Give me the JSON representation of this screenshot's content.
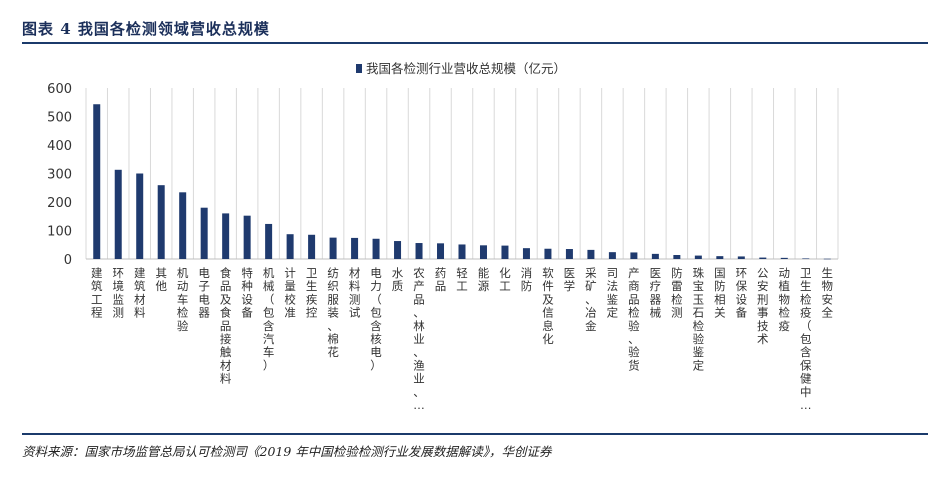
{
  "figure": {
    "title": "图表 4    我国各检测领域营收总规模",
    "source": "资料来源：国家市场监管总局认可检测司《2019 年中国检验检测行业发展数据解读》，华创证券"
  },
  "colors": {
    "bar": "#1f3a6e",
    "grid": "#d9d9d9",
    "rule": "#1b3a6b",
    "text": "#333333"
  },
  "chart_data": {
    "type": "bar",
    "title": "",
    "xlabel": "",
    "ylabel": "",
    "ylim": [
      0,
      600
    ],
    "yticks": [
      0,
      100,
      200,
      300,
      400,
      500,
      600
    ],
    "grid": "vertical-only",
    "legend": {
      "position": "top-center",
      "entries": [
        "我国各检测行业营收总规模（亿元）"
      ]
    },
    "categories": [
      "建筑工程",
      "环境监测",
      "建筑材料",
      "其他",
      "机动车检验",
      "电子电器",
      "食品及食品接触材料",
      "特种设备",
      "机械（包含汽车）",
      "计量校准",
      "卫生疾控",
      "纺织服装、棉花",
      "材料测试",
      "电力（包含核电）",
      "水质",
      "农产品、林业、渔业、…",
      "药品",
      "轻工",
      "能源",
      "化工",
      "消防",
      "软件及信息化",
      "医学",
      "采矿、冶金",
      "司法鉴定",
      "产商品检验、验货",
      "医疗器械",
      "防雷检测",
      "珠宝玉石检验鉴定",
      "国防相关",
      "环保设备",
      "公安刑事技术",
      "动植物检疫",
      "卫生检疫（包含保健中…",
      "生物安全"
    ],
    "series": [
      {
        "name": "我国各检测行业营收总规模（亿元）",
        "values": [
          543,
          313,
          300,
          259,
          234,
          180,
          160,
          152,
          123,
          87,
          85,
          75,
          74,
          71,
          63,
          56,
          55,
          51,
          48,
          47,
          38,
          36,
          35,
          32,
          24,
          23,
          18,
          14,
          12,
          10,
          9,
          5,
          4,
          2,
          1
        ]
      }
    ]
  }
}
